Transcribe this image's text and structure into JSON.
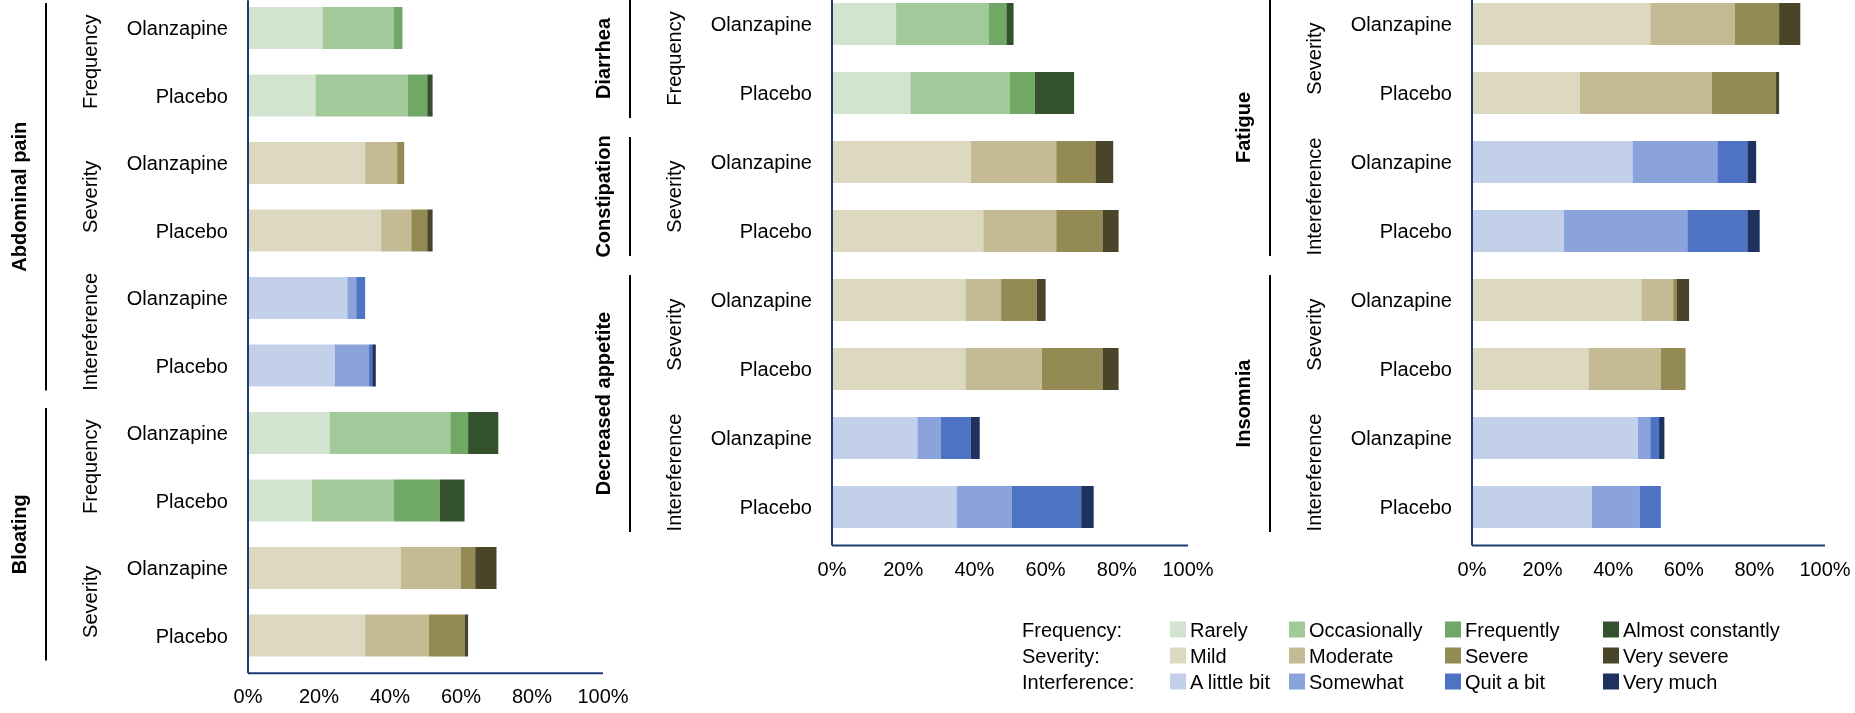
{
  "chart_data": [
    {
      "type": "bar",
      "orientation": "horizontal",
      "stacked": true,
      "categories": [
        "Olanzapine",
        "Placebo",
        "Olanzapine",
        "Placebo",
        "Olanzapine",
        "Placebo",
        "Olanzapine",
        "Placebo",
        "Olanzapine",
        "Placebo"
      ],
      "xlim": [
        0,
        100
      ],
      "xticks": [
        {
          "value": 0,
          "label": "0%"
        },
        {
          "value": 20,
          "label": "20%"
        },
        {
          "value": 40,
          "label": "40%"
        },
        {
          "value": 60,
          "label": "60%"
        },
        {
          "value": 80,
          "label": "80%"
        },
        {
          "value": 100,
          "label": "100%"
        }
      ],
      "annotations": [
        "Abdominal pain",
        "Bloating",
        "Frequency",
        "Severity",
        "Intereference",
        "Frequency",
        "Severity"
      ],
      "series": [
        {
          "color": "#d2e3cf",
          "values": [
            21,
            19,
            null,
            null,
            null,
            null,
            23,
            18,
            null,
            null
          ]
        },
        {
          "color": "#a2c99a",
          "values": [
            20,
            26,
            null,
            null,
            null,
            null,
            34,
            23,
            null,
            null
          ]
        },
        {
          "color": "#70a866",
          "values": [
            2.5,
            5.5,
            null,
            null,
            null,
            null,
            5,
            13,
            null,
            null
          ]
        },
        {
          "color": "#33512d",
          "values": [
            0,
            1.5,
            null,
            null,
            null,
            null,
            8.5,
            7,
            null,
            null
          ]
        },
        {
          "color": "#ddd8c0",
          "values": [
            null,
            null,
            33,
            37.5,
            null,
            null,
            null,
            null,
            43,
            33
          ]
        },
        {
          "color": "#c4bb95",
          "values": [
            null,
            null,
            9,
            8.5,
            null,
            null,
            null,
            null,
            17,
            18
          ]
        },
        {
          "color": "#948a54",
          "values": [
            null,
            null,
            2,
            4.5,
            null,
            null,
            null,
            null,
            4,
            10
          ]
        },
        {
          "color": "#4a4428",
          "values": [
            null,
            null,
            0,
            1.5,
            null,
            null,
            null,
            null,
            6,
            1
          ]
        },
        {
          "color": "#c3d0ea",
          "values": [
            null,
            null,
            null,
            null,
            28,
            24.5,
            null,
            null,
            null,
            null
          ]
        },
        {
          "color": "#8aa3da",
          "values": [
            null,
            null,
            null,
            null,
            2.5,
            9.5,
            null,
            null,
            null,
            null
          ]
        },
        {
          "color": "#4f73c4",
          "values": [
            null,
            null,
            null,
            null,
            2.5,
            1,
            null,
            null,
            null,
            null
          ]
        },
        {
          "color": "#1f315e",
          "values": [
            null,
            null,
            null,
            null,
            0,
            1,
            null,
            null,
            null,
            null
          ]
        }
      ]
    },
    {
      "type": "bar",
      "orientation": "horizontal",
      "stacked": true,
      "legend": "bottom",
      "categories": [
        "Olanzapine",
        "Placebo",
        "Olanzapine",
        "Placebo",
        "Olanzapine",
        "Placebo",
        "Olanzapine",
        "Placebo"
      ],
      "xlim": [
        0,
        100
      ],
      "xticks": [
        {
          "value": 0,
          "label": "0%"
        },
        {
          "value": 20,
          "label": "20%"
        },
        {
          "value": 40,
          "label": "40%"
        },
        {
          "value": 60,
          "label": "60%"
        },
        {
          "value": 80,
          "label": "80%"
        },
        {
          "value": 100,
          "label": "100%"
        }
      ],
      "annotations": [
        "Diarrhea",
        "Constipation",
        "Decreased  appetite",
        "Frequency",
        "Severity",
        "Severity",
        "Intereference",
        "Frequency:",
        "Severity:",
        "Interference:"
      ],
      "series": [
        {
          "name": "Rarely",
          "color": "#d2e3cf",
          "values": [
            18,
            22,
            null,
            null,
            null,
            null,
            null,
            null
          ]
        },
        {
          "name": "Occasionally",
          "color": "#a2c99a",
          "values": [
            26,
            28,
            null,
            null,
            null,
            null,
            null,
            null
          ]
        },
        {
          "name": "Frequently",
          "color": "#70a866",
          "values": [
            5,
            7,
            null,
            null,
            null,
            null,
            null,
            null
          ]
        },
        {
          "name": "Almost constantly",
          "color": "#33512d",
          "values": [
            2,
            11,
            null,
            null,
            null,
            null,
            null,
            null
          ]
        },
        {
          "name": "Mild",
          "color": "#ddd8c0",
          "values": [
            null,
            null,
            39,
            42.5,
            37.5,
            37.5,
            null,
            null
          ]
        },
        {
          "name": "Moderate",
          "color": "#c4bb95",
          "values": [
            null,
            null,
            24,
            20.5,
            10,
            21.5,
            null,
            null
          ]
        },
        {
          "name": "Severe",
          "color": "#948a54",
          "values": [
            null,
            null,
            11,
            13,
            10,
            17,
            null,
            null
          ]
        },
        {
          "name": "Very severe",
          "color": "#4a4428",
          "values": [
            null,
            null,
            5,
            4.5,
            2.5,
            4.5,
            null,
            null
          ]
        },
        {
          "name": "A little bit",
          "color": "#c3d0ea",
          "values": [
            null,
            null,
            null,
            null,
            null,
            null,
            24,
            35
          ]
        },
        {
          "name": "Somewhat",
          "color": "#8aa3da",
          "values": [
            null,
            null,
            null,
            null,
            null,
            null,
            6.5,
            15.5
          ]
        },
        {
          "name": "Quit a bit",
          "color": "#4f73c4",
          "values": [
            null,
            null,
            null,
            null,
            null,
            null,
            8.5,
            19.5
          ]
        },
        {
          "name": "Very much",
          "color": "#1f315e",
          "values": [
            null,
            null,
            null,
            null,
            null,
            null,
            2.5,
            3.5
          ]
        }
      ]
    },
    {
      "type": "bar",
      "orientation": "horizontal",
      "stacked": true,
      "categories": [
        "Olanzapine",
        "Placebo",
        "Olanzapine",
        "Placebo",
        "Olanzapine",
        "Placebo",
        "Olanzapine",
        "Placebo"
      ],
      "xlim": [
        0,
        100
      ],
      "xticks": [
        {
          "value": 0,
          "label": "0%"
        },
        {
          "value": 20,
          "label": "20%"
        },
        {
          "value": 40,
          "label": "40%"
        },
        {
          "value": 60,
          "label": "60%"
        },
        {
          "value": 80,
          "label": "80%"
        },
        {
          "value": 100,
          "label": "100%"
        }
      ],
      "annotations": [
        "Fatigue",
        "Insomnia",
        "Severity",
        "Intereference",
        "Severity",
        "Intereference"
      ],
      "series": [
        {
          "color": "#ddd8c0",
          "values": [
            50.5,
            30.5,
            null,
            null,
            48,
            33,
            null,
            null
          ]
        },
        {
          "color": "#c4bb95",
          "values": [
            24,
            37.5,
            null,
            null,
            9,
            20.5,
            null,
            null
          ]
        },
        {
          "color": "#948a54",
          "values": [
            12.5,
            18,
            null,
            null,
            1,
            7,
            null,
            null
          ]
        },
        {
          "color": "#4a4428",
          "values": [
            6,
            1,
            null,
            null,
            3.5,
            0,
            null,
            null
          ]
        },
        {
          "color": "#c3d0ea",
          "values": [
            null,
            null,
            45.5,
            26,
            null,
            null,
            47,
            34
          ]
        },
        {
          "color": "#8aa3da",
          "values": [
            null,
            null,
            24,
            35,
            null,
            null,
            3.5,
            13.5
          ]
        },
        {
          "color": "#4f73c4",
          "values": [
            null,
            null,
            8.5,
            17,
            null,
            null,
            2.5,
            6
          ]
        },
        {
          "color": "#1f315e",
          "values": [
            null,
            null,
            2.5,
            3.5,
            null,
            null,
            1.5,
            0
          ]
        }
      ]
    }
  ]
}
